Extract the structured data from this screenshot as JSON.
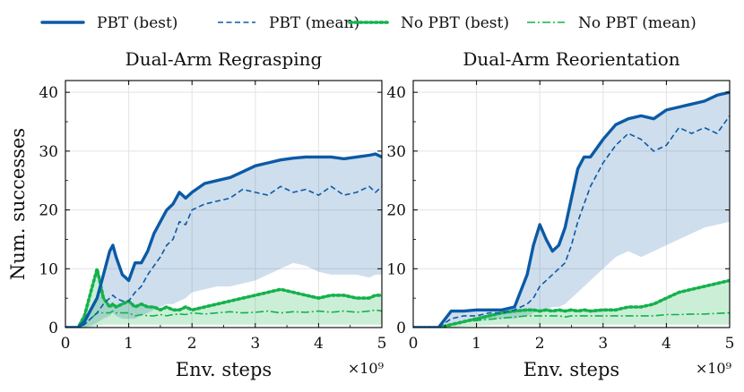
{
  "legend": {
    "items": [
      {
        "label": "PBT (best)",
        "style": "solid",
        "color": "#0b5aa6"
      },
      {
        "label": "PBT (mean)",
        "style": "dashed",
        "color": "#0b5aa6"
      },
      {
        "label": "No PBT (best)",
        "style": "dotted",
        "color": "#13b24b"
      },
      {
        "label": "No PBT (mean)",
        "style": "dashdot",
        "color": "#13b24b"
      }
    ]
  },
  "chart_data": [
    {
      "type": "line",
      "title": "Dual-Arm Regrasping",
      "xlabel": "Env. steps",
      "ylabel": "Num. successes",
      "x_multiplier": "×10⁹",
      "xlim": [
        0,
        5
      ],
      "ylim": [
        0,
        42
      ],
      "xticks": [
        0,
        1,
        2,
        3,
        4,
        5
      ],
      "yticks": [
        0,
        10,
        20,
        30,
        40
      ],
      "x": [
        0,
        0.2,
        0.3,
        0.4,
        0.5,
        0.6,
        0.7,
        0.75,
        0.8,
        0.9,
        1.0,
        1.1,
        1.2,
        1.3,
        1.4,
        1.5,
        1.6,
        1.7,
        1.8,
        1.9,
        2.0,
        2.2,
        2.4,
        2.6,
        2.8,
        3.0,
        3.2,
        3.4,
        3.6,
        3.8,
        4.0,
        4.2,
        4.4,
        4.6,
        4.8,
        4.9,
        5.0
      ],
      "series": [
        {
          "name": "PBT (best)",
          "style": "solid",
          "values": [
            0,
            0,
            1,
            3,
            5,
            9,
            13,
            14,
            12,
            9,
            8,
            11,
            11,
            13,
            16,
            18,
            20,
            21,
            23,
            22,
            23,
            24.5,
            25,
            25.5,
            26.5,
            27.5,
            28,
            28.5,
            28.8,
            29,
            29,
            29,
            28.7,
            29,
            29.3,
            29.5,
            29
          ]
        },
        {
          "name": "PBT (mean)",
          "style": "dashed",
          "values": [
            0,
            0,
            0.5,
            1.5,
            2.5,
            4,
            5,
            5.5,
            5,
            4.5,
            4.5,
            6,
            7,
            9,
            10.5,
            12,
            14,
            15,
            18,
            17.5,
            20,
            21,
            21.5,
            22,
            23.5,
            23,
            22.5,
            24,
            23,
            23.5,
            22.5,
            24,
            22.5,
            23,
            24,
            23,
            24
          ]
        },
        {
          "name": "No PBT (best)",
          "style": "dotted",
          "values": [
            0,
            0,
            2,
            6,
            10,
            5,
            3.5,
            4,
            3.5,
            4,
            4.5,
            3.5,
            4,
            3.5,
            3.5,
            3,
            3.5,
            3,
            3,
            3.5,
            3,
            3.5,
            4,
            4.5,
            5,
            5.5,
            6,
            6.5,
            6,
            5.5,
            5,
            5.5,
            5.5,
            5,
            5,
            5.5,
            5.5
          ]
        },
        {
          "name": "No PBT (mean)",
          "style": "dashdot",
          "values": [
            0,
            0,
            0.5,
            1.5,
            2.5,
            2.5,
            2.5,
            2.8,
            2.5,
            2.5,
            2.5,
            2,
            2.2,
            2,
            2,
            2.2,
            2,
            2.2,
            2.3,
            2.2,
            2.5,
            2.3,
            2.5,
            2.7,
            2.5,
            2.6,
            2.8,
            2.5,
            2.7,
            2.6,
            2.8,
            2.6,
            2.8,
            2.6,
            2.8,
            3,
            2.8
          ]
        }
      ],
      "bands": [
        {
          "name": "PBT range",
          "lower": [
            0,
            0,
            0,
            0.3,
            0.8,
            1.5,
            2,
            2.5,
            2,
            1.5,
            1.5,
            1.5,
            2,
            2.5,
            3,
            3.5,
            4,
            4,
            4.5,
            5,
            6,
            6.5,
            7,
            7,
            7.5,
            8,
            9,
            10,
            11,
            10.5,
            9.5,
            9,
            9,
            9,
            8.5,
            9,
            9
          ],
          "upper": [
            0,
            0,
            1,
            3,
            5,
            9,
            13,
            14,
            12,
            9,
            8,
            11,
            11,
            13,
            16,
            18,
            20,
            21,
            23,
            22,
            23,
            24.5,
            25,
            25.5,
            26.5,
            27.5,
            28,
            28.5,
            28.8,
            29,
            29,
            29,
            28.7,
            29,
            29.3,
            29.5,
            29
          ]
        },
        {
          "name": "No PBT range",
          "lower": [
            0,
            0,
            0,
            0,
            0.3,
            0.5,
            0.5,
            0.5,
            0.5,
            0.5,
            0.5,
            0.5,
            0.5,
            0.5,
            0.5,
            0.5,
            0.5,
            0.5,
            0.5,
            0.5,
            0.5,
            0.5,
            0.5,
            0.5,
            0.5,
            0.5,
            0.5,
            0.5,
            0.5,
            0.5,
            0.5,
            0.5,
            0.5,
            0.5,
            0.5,
            0.5,
            0.5
          ],
          "upper": [
            0,
            0,
            2,
            6,
            10,
            5,
            3.5,
            4,
            3.5,
            4,
            4.5,
            3.5,
            4,
            3.5,
            3.5,
            3,
            3.5,
            3,
            3,
            3.5,
            3,
            3.5,
            4,
            4.5,
            5,
            5.5,
            6,
            6.5,
            6,
            5.5,
            5,
            5.5,
            5.5,
            5,
            5,
            5.5,
            5.5
          ]
        }
      ]
    },
    {
      "type": "line",
      "title": "Dual-Arm Reorientation",
      "xlabel": "Env. steps",
      "ylabel": "",
      "x_multiplier": "×10⁹",
      "xlim": [
        0,
        5
      ],
      "ylim": [
        0,
        42
      ],
      "xticks": [
        0,
        1,
        2,
        3,
        4,
        5
      ],
      "yticks": [
        0,
        10,
        20,
        30,
        40
      ],
      "x": [
        0,
        0.4,
        0.6,
        0.8,
        1.0,
        1.2,
        1.4,
        1.6,
        1.8,
        1.9,
        2.0,
        2.1,
        2.2,
        2.3,
        2.4,
        2.5,
        2.6,
        2.7,
        2.8,
        3.0,
        3.2,
        3.4,
        3.6,
        3.8,
        4.0,
        4.2,
        4.4,
        4.6,
        4.8,
        5.0
      ],
      "series": [
        {
          "name": "PBT (best)",
          "style": "solid",
          "values": [
            0,
            0,
            2.8,
            2.8,
            3,
            3,
            3,
            3.5,
            9,
            14,
            17.5,
            15,
            13,
            14,
            17,
            22,
            27,
            29,
            29,
            32,
            34.5,
            35.5,
            36,
            35.5,
            37,
            37.5,
            38,
            38.5,
            39.5,
            40
          ]
        },
        {
          "name": "PBT (mean)",
          "style": "dashed",
          "values": [
            0,
            0,
            1.5,
            2,
            2,
            2.5,
            2.5,
            3,
            4,
            5,
            7,
            8,
            9,
            10,
            11,
            14,
            18,
            21,
            24,
            28,
            31,
            33,
            32,
            30,
            31,
            34,
            33,
            34,
            33,
            36
          ]
        },
        {
          "name": "No PBT (best)",
          "style": "dotted",
          "values": [
            0,
            0,
            0.5,
            1,
            1.5,
            2,
            2.5,
            2.8,
            3,
            3,
            2.8,
            3,
            2.8,
            3,
            2.8,
            3,
            2.8,
            3,
            2.8,
            3,
            3,
            3.5,
            3.5,
            4,
            5,
            6,
            6.5,
            7,
            7.5,
            8
          ]
        },
        {
          "name": "No PBT (mean)",
          "style": "dashdot",
          "values": [
            0,
            0,
            0.5,
            1,
            1.2,
            1.4,
            1.6,
            1.8,
            2,
            2,
            2,
            2,
            2,
            2,
            1.8,
            2,
            2,
            2,
            2,
            2,
            2,
            2,
            2,
            2,
            2.2,
            2.2,
            2.3,
            2.3,
            2.4,
            2.5
          ]
        }
      ],
      "bands": [
        {
          "name": "PBT range",
          "lower": [
            0,
            0,
            0.5,
            1,
            1,
            1.5,
            1.5,
            1.5,
            2,
            2.5,
            3,
            3,
            3.5,
            3.5,
            4,
            5,
            6,
            7,
            8,
            10,
            12,
            13,
            12,
            13,
            14,
            15,
            16,
            17,
            17.5,
            18
          ],
          "upper": [
            0,
            0,
            2.8,
            2.8,
            3,
            3,
            3,
            3.5,
            9,
            14,
            17.5,
            15,
            13,
            14,
            17,
            22,
            27,
            29,
            29,
            32,
            34.5,
            35.5,
            36,
            35.5,
            37,
            37.5,
            38,
            38.5,
            39.5,
            40
          ]
        },
        {
          "name": "No PBT range",
          "lower": [
            0,
            0,
            0,
            0.2,
            0.3,
            0.4,
            0.5,
            0.5,
            0.5,
            0.5,
            0.5,
            0.5,
            0.5,
            0.5,
            0.5,
            0.5,
            0.5,
            0.5,
            0.5,
            0.5,
            0.5,
            0.5,
            0.5,
            0.5,
            0.5,
            0.5,
            0.5,
            0.5,
            0.5,
            0.5
          ],
          "upper": [
            0,
            0,
            0.5,
            1,
            1.5,
            2,
            2.5,
            2.8,
            3,
            3,
            2.8,
            3,
            2.8,
            3,
            2.8,
            3,
            2.8,
            3,
            2.8,
            3,
            3,
            3.5,
            3.5,
            4,
            5,
            6,
            6.5,
            7,
            7.5,
            8
          ]
        }
      ]
    }
  ]
}
